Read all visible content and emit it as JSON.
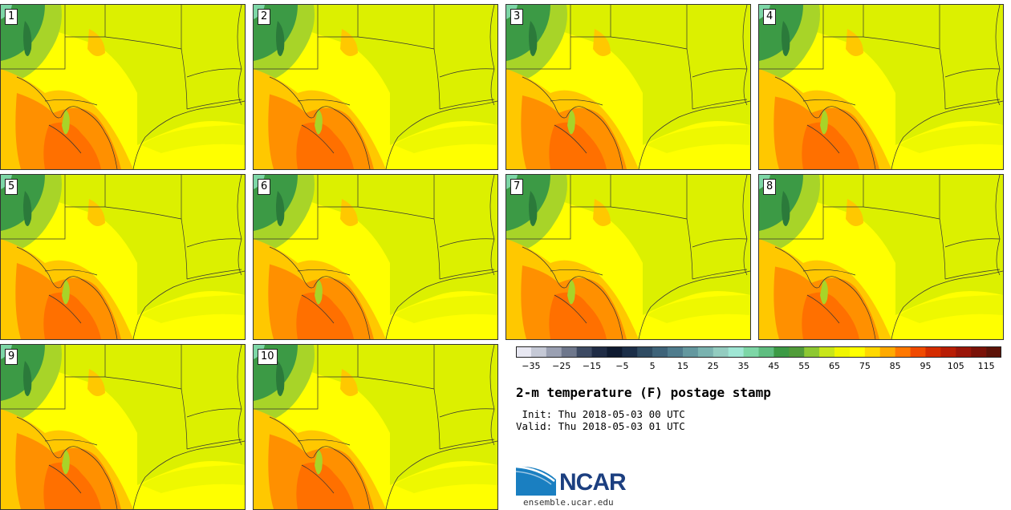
{
  "panels": [
    {
      "label": "1"
    },
    {
      "label": "2"
    },
    {
      "label": "3"
    },
    {
      "label": "4"
    },
    {
      "label": "5"
    },
    {
      "label": "6"
    },
    {
      "label": "7"
    },
    {
      "label": "8"
    },
    {
      "label": "9"
    },
    {
      "label": "10"
    }
  ],
  "colorbar": {
    "tick_labels": [
      "−35",
      "−25",
      "−15",
      "−5",
      "5",
      "15",
      "25",
      "35",
      "45",
      "55",
      "65",
      "75",
      "85",
      "95",
      "105",
      "115"
    ],
    "min": -40,
    "max": 120,
    "step": 5,
    "colors": [
      "#e8e8f2",
      "#c5c9d6",
      "#9aa0b2",
      "#6e778c",
      "#3d4a63",
      "#1f2c45",
      "#0e1a30",
      "#1b2e48",
      "#2f4b62",
      "#3e6379",
      "#4f7c8d",
      "#64989f",
      "#7ab3b0",
      "#93ccc0",
      "#9fe6d4",
      "#7dd6a6",
      "#5fbd80",
      "#3c9a45",
      "#519c3a",
      "#8dc832",
      "#c8e61a",
      "#f0f500",
      "#ffff00",
      "#ffd800",
      "#ffaa00",
      "#ff7800",
      "#f04a00",
      "#d42c00",
      "#b81d05",
      "#9a1509",
      "#7a1208",
      "#5c1208"
    ]
  },
  "title": "2-m temperature (F) postage stamp",
  "init": " Init: Thu 2018-05-03 00 UTC",
  "valid": "Valid: Thu 2018-05-03 01 UTC",
  "logo": {
    "text": "NCAR",
    "url": "ensemble.ucar.edu"
  },
  "colors": {
    "hot": "#ff9000",
    "warm": "#ffc800",
    "yellow": "#ffff00",
    "yellowgreen": "#dcf000",
    "lightgreen": "#a8d428",
    "green": "#3c9a45",
    "darkgreen": "#2b7a3a",
    "teal": "#7dd6a6",
    "border": "#333333"
  }
}
